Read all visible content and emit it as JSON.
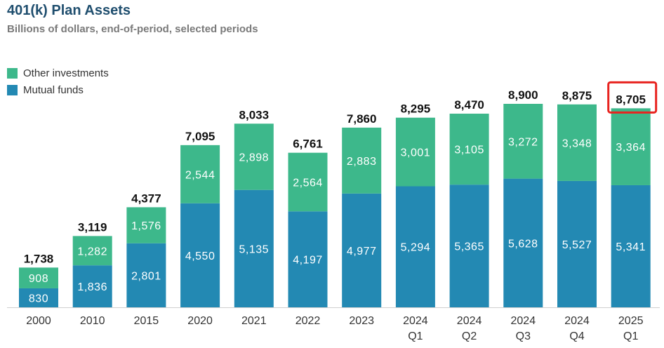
{
  "header": {
    "title": "401(k) Plan Assets",
    "subtitle": "Billions of dollars, end-of-period, selected periods"
  },
  "colors": {
    "mutual_funds": "#2389b3",
    "other_investments": "#3db88b",
    "highlight": "#e8231f",
    "axis_text": "#333333",
    "total_text": "#111111"
  },
  "chart_data": {
    "type": "bar",
    "stacked": true,
    "title": "401(k) Plan Assets",
    "subtitle": "Billions of dollars, end-of-period, selected periods",
    "categories": [
      [
        "2000"
      ],
      [
        "2010"
      ],
      [
        "2015"
      ],
      [
        "2020"
      ],
      [
        "2021"
      ],
      [
        "2022"
      ],
      [
        "2023"
      ],
      [
        "2024",
        "Q1"
      ],
      [
        "2024",
        "Q2"
      ],
      [
        "2024",
        "Q3"
      ],
      [
        "2024",
        "Q4"
      ],
      [
        "2025",
        "Q1"
      ]
    ],
    "series": [
      {
        "name": "Mutual funds",
        "values": [
          830,
          1836,
          2801,
          4550,
          5135,
          4197,
          4977,
          5294,
          5365,
          5628,
          5527,
          5341
        ],
        "labels": [
          "830",
          "1,836",
          "2,801",
          "4,550",
          "5,135",
          "4,197",
          "4,977",
          "5,294",
          "5,365",
          "5,628",
          "5,527",
          "5,341"
        ]
      },
      {
        "name": "Other investments",
        "values": [
          908,
          1282,
          1576,
          2544,
          2898,
          2564,
          2883,
          3001,
          3105,
          3272,
          3348,
          3364
        ],
        "labels": [
          "908",
          "1,282",
          "1,576",
          "2,544",
          "2,898",
          "2,564",
          "2,883",
          "3,001",
          "3,105",
          "3,272",
          "3,348",
          "3,364"
        ]
      }
    ],
    "totals": [
      1738,
      3119,
      4377,
      7095,
      8033,
      6761,
      7860,
      8295,
      8470,
      8900,
      8875,
      8705
    ],
    "total_labels": [
      "1,738",
      "3,119",
      "4,377",
      "7,095",
      "8,033",
      "6,761",
      "7,860",
      "8,295",
      "8,470",
      "8,900",
      "8,875",
      "8,705"
    ],
    "highlighted_total_index": 11,
    "legend": {
      "placement": "top-left",
      "order": [
        "Other investments",
        "Mutual funds"
      ]
    },
    "grid": false,
    "ylim": [
      0,
      8900
    ]
  }
}
